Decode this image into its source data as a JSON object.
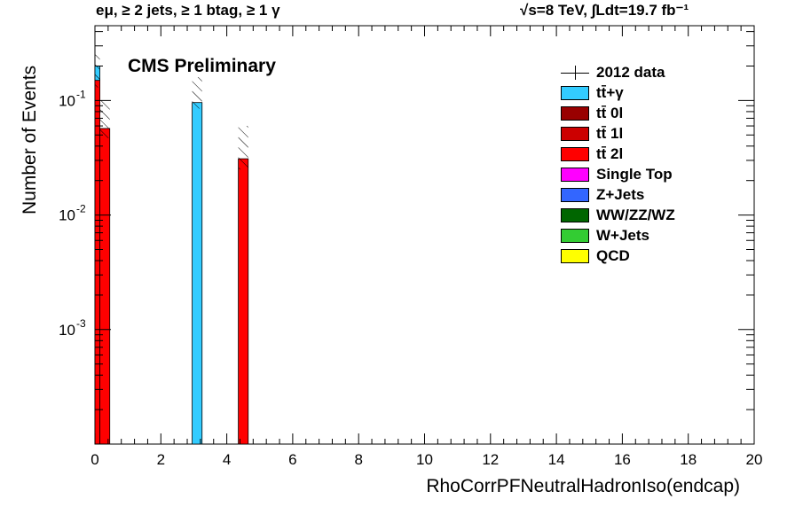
{
  "header": {
    "left": "eμ, ≥ 2 jets, ≥ 1 btag, ≥ 1 γ",
    "right": "√s=8 TeV,  ∫Ldt=19.7 fb⁻¹"
  },
  "watermark": "CMS Preliminary",
  "chart_data": {
    "type": "bar",
    "xlabel": "RhoCorrPFNeutralHadronIso(endcap)",
    "ylabel": "Number of Events",
    "xlim": [
      0,
      20
    ],
    "ylim": [
      0.0001,
      0.45
    ],
    "yscale": "log",
    "x_ticks": [
      "0",
      "2",
      "4",
      "6",
      "8",
      "10",
      "12",
      "14",
      "16",
      "18",
      "20"
    ],
    "y_ticks": [
      {
        "value": 0.001,
        "label": "10",
        "exp": "-3"
      },
      {
        "value": 0.01,
        "label": "10",
        "exp": "-2"
      },
      {
        "value": 0.1,
        "label": "10",
        "exp": "-1"
      }
    ],
    "bins": [
      {
        "x0": 0.0,
        "x1": 0.15,
        "stack": [
          {
            "sample": "tt 2l",
            "value": 0.15
          },
          {
            "sample": "tt+gamma",
            "value": 0.05
          }
        ],
        "unc": [
          0.13,
          0.26
        ]
      },
      {
        "x0": 0.15,
        "x1": 0.45,
        "stack": [
          {
            "sample": "tt 2l",
            "value": 0.057
          }
        ],
        "unc": [
          0.047,
          0.1
        ]
      },
      {
        "x0": 2.95,
        "x1": 3.25,
        "stack": [
          {
            "sample": "tt+gamma",
            "value": 0.096
          }
        ],
        "unc": [
          0.085,
          0.16
        ]
      },
      {
        "x0": 4.35,
        "x1": 4.65,
        "stack": [
          {
            "sample": "tt 2l",
            "value": 0.031
          }
        ],
        "unc": [
          0.025,
          0.06
        ]
      }
    ],
    "legend_position": "top-right",
    "legend": [
      {
        "label": "2012 data",
        "color": "#000000",
        "marker": true
      },
      {
        "label": "tt̄+γ",
        "color": "#33ccff"
      },
      {
        "label": "tt̄ 0l",
        "color": "#990000"
      },
      {
        "label": "tt̄ 1l",
        "color": "#cc0000"
      },
      {
        "label": "tt̄ 2l",
        "color": "#ff0000"
      },
      {
        "label": "Single Top",
        "color": "#ff00ff"
      },
      {
        "label": "Z+Jets",
        "color": "#3366ff"
      },
      {
        "label": "WW/ZZ/WZ",
        "color": "#006600"
      },
      {
        "label": "W+Jets",
        "color": "#33cc33"
      },
      {
        "label": "QCD",
        "color": "#ffff00"
      }
    ],
    "colors": {
      "tt+gamma": "#33ccff",
      "tt 2l": "#ff0000"
    }
  }
}
